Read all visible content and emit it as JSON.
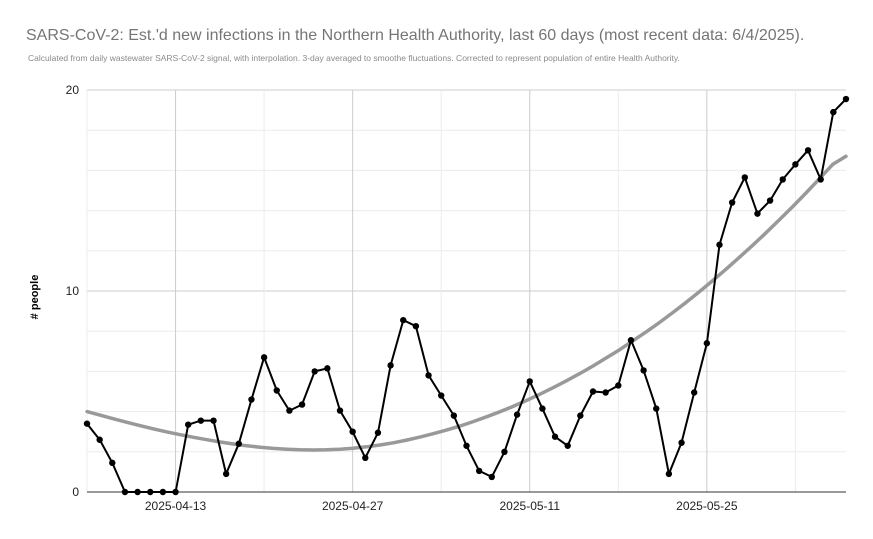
{
  "chart_data": {
    "type": "line",
    "title": "SARS-CoV-2: Est.'d new infections in the Northern Health Authority, last 60 days (most recent data: 6/4/2025).",
    "subtitle": "Calculated from daily wastewater SARS-CoV-2 signal, with interpolation. 3-day averaged to smoothe fluctuations. Corrected to represent population of entire Health Authority.",
    "xlabel": "",
    "ylabel": "# people",
    "ylim": [
      0,
      20
    ],
    "yticks": [
      0,
      10,
      20
    ],
    "x_start": "2025-04-06",
    "x_end": "2025-06-05",
    "xtick_labels": [
      "2025-04-13",
      "2025-04-27",
      "2025-05-11",
      "2025-05-25"
    ],
    "grid": true,
    "legend": "none",
    "series": [
      {
        "color": "#000000",
        "values": [
          3.4,
          2.6,
          1.45,
          0.0,
          0.0,
          0.0,
          0.0,
          0.0,
          3.35,
          3.55,
          3.55,
          0.9,
          2.4,
          4.6,
          6.7,
          5.05,
          4.05,
          4.35,
          6.0,
          6.15,
          4.05,
          3.0,
          1.7,
          2.95,
          6.3,
          8.55,
          8.25,
          5.8,
          4.8,
          3.8,
          2.3,
          1.05,
          0.75,
          2.0,
          3.85,
          5.5,
          4.15,
          2.75,
          2.3,
          3.8,
          5.0,
          4.95,
          5.3,
          7.55,
          6.05,
          4.15,
          0.9,
          2.45,
          4.95,
          7.4,
          12.3,
          14.4,
          15.65,
          13.85,
          14.5,
          15.55,
          16.3,
          17.0,
          15.55,
          18.9,
          19.55
        ]
      },
      {
        "color": "#999999",
        "values": [
          4.0,
          3.82,
          3.64,
          3.47,
          3.3,
          3.14,
          2.99,
          2.85,
          2.72,
          2.6,
          2.49,
          2.39,
          2.3,
          2.23,
          2.17,
          2.13,
          2.1,
          2.09,
          2.1,
          2.13,
          2.18,
          2.25,
          2.34,
          2.45,
          2.58,
          2.73,
          2.9,
          3.08,
          3.28,
          3.5,
          3.74,
          3.99,
          4.26,
          4.55,
          4.86,
          5.19,
          5.53,
          5.89,
          6.27,
          6.67,
          7.08,
          7.52,
          7.97,
          8.44,
          8.93,
          9.44,
          9.97,
          10.52,
          11.09,
          11.68,
          12.28,
          12.9,
          13.54,
          14.2,
          14.88,
          15.58,
          16.3,
          16.7
        ]
      }
    ]
  }
}
